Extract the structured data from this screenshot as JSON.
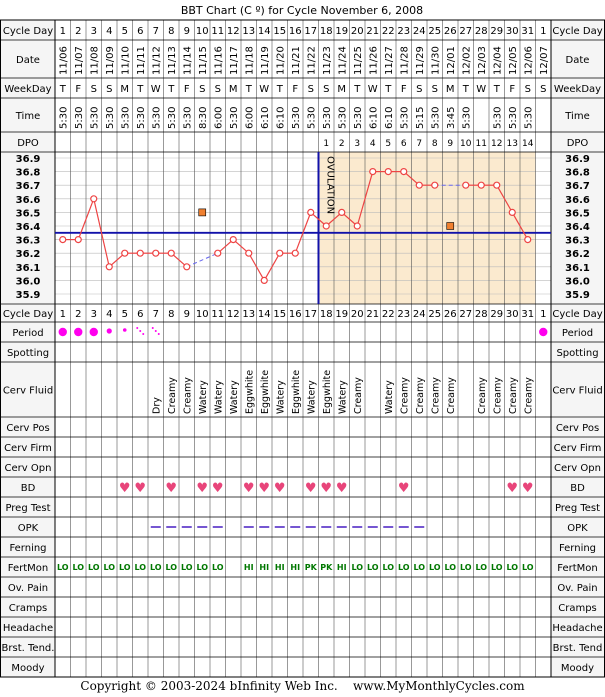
{
  "title": "BBT Chart (C º) for Cycle November 6, 2008",
  "footer": {
    "copyright": "Copyright © 2003-2024 bInfinity Web Inc.",
    "site": "www.MyMonthlyCycles.com"
  },
  "row_labels": {
    "cycle_day": "Cycle Day",
    "date": "Date",
    "weekday": "WeekDay",
    "time": "Time",
    "dpo": "DPO",
    "period": "Period",
    "spotting": "Spotting",
    "cerv_fluid": "Cerv Fluid",
    "cerv_pos": "Cerv Pos",
    "cerv_firm": "Cerv Firm",
    "cerv_opn": "Cerv Opn",
    "bd": "BD",
    "preg_test": "Preg Test",
    "opk": "OPK",
    "ferning": "Ferning",
    "fertmon": "FertMon",
    "ov_pain": "Ov. Pain",
    "cramps": "Cramps",
    "headache": "Headache",
    "brst_tend_left": "Brst. Tend.",
    "brst_tend_right": "Brst. Tend",
    "moody": "Moody"
  },
  "ovulation_label": "OVULATION",
  "cycle_days": [
    "1",
    "2",
    "3",
    "4",
    "5",
    "6",
    "7",
    "8",
    "9",
    "10",
    "11",
    "12",
    "13",
    "14",
    "15",
    "16",
    "17",
    "18",
    "19",
    "20",
    "21",
    "22",
    "23",
    "24",
    "25",
    "26",
    "27",
    "28",
    "29",
    "30",
    "31",
    "1"
  ],
  "dates": [
    "11/06",
    "11/07",
    "11/08",
    "11/09",
    "11/10",
    "11/11",
    "11/12",
    "11/13",
    "11/14",
    "11/15",
    "11/16",
    "11/17",
    "11/18",
    "11/19",
    "11/20",
    "11/21",
    "11/22",
    "11/23",
    "11/24",
    "11/25",
    "11/26",
    "11/27",
    "11/28",
    "11/29",
    "11/30",
    "12/01",
    "12/02",
    "12/03",
    "12/04",
    "12/05",
    "12/06",
    "12/07"
  ],
  "weekdays": [
    "T",
    "F",
    "S",
    "S",
    "M",
    "T",
    "W",
    "T",
    "F",
    "S",
    "S",
    "M",
    "T",
    "W",
    "T",
    "F",
    "S",
    "S",
    "M",
    "T",
    "W",
    "T",
    "F",
    "S",
    "S",
    "M",
    "T",
    "W",
    "T",
    "F",
    "S",
    "S"
  ],
  "times": [
    "5:30",
    "5:30",
    "5:30",
    "5:30",
    "5:30",
    "5:30",
    "5:30",
    "5:30",
    "5:30",
    "8:30",
    "6:00",
    "5:30",
    "6:00",
    "6:10",
    "6:10",
    "5:30",
    "5:30",
    "5:30",
    "5:30",
    "5:30",
    "6:10",
    "6:10",
    "5:30",
    "5:15",
    "5:30",
    "3:45",
    "5:30",
    "",
    "5:30",
    "5:30",
    "5:30",
    ""
  ],
  "dpo": [
    "",
    "",
    "",
    "",
    "",
    "",
    "",
    "",
    "",
    "",
    "",
    "",
    "",
    "",
    "",
    "",
    "",
    "1",
    "2",
    "3",
    "4",
    "5",
    "6",
    "7",
    "8",
    "9",
    "10",
    "11",
    "12",
    "13",
    "14",
    ""
  ],
  "cerv_fluid": [
    "",
    "",
    "",
    "",
    "",
    "",
    "Dry",
    "Creamy",
    "Creamy",
    "Watery",
    "Watery",
    "Watery",
    "Eggwhite",
    "Eggwhite",
    "Watery",
    "Eggwhite",
    "Watery",
    "Eggwhite",
    "Watery",
    "Creamy",
    "",
    "Watery",
    "Creamy",
    "Creamy",
    "Creamy",
    "Creamy",
    "",
    "Creamy",
    "Creamy",
    "Creamy",
    "Creamy",
    ""
  ],
  "bd": [
    false,
    false,
    false,
    false,
    true,
    true,
    false,
    true,
    false,
    true,
    true,
    false,
    true,
    true,
    true,
    false,
    true,
    true,
    true,
    false,
    false,
    false,
    true,
    false,
    false,
    false,
    false,
    false,
    false,
    true,
    true,
    false
  ],
  "opk": [
    false,
    false,
    false,
    false,
    false,
    false,
    true,
    true,
    true,
    true,
    true,
    false,
    true,
    true,
    true,
    true,
    true,
    true,
    true,
    true,
    true,
    true,
    true,
    true,
    false,
    false,
    false,
    false,
    false,
    false,
    false,
    false
  ],
  "fertmon": [
    "LO",
    "LO",
    "LO",
    "LO",
    "LO",
    "LO",
    "LO",
    "LO",
    "LO",
    "LO",
    "LO",
    "",
    "HI",
    "HI",
    "HI",
    "HI",
    "PK",
    "PK",
    "HI",
    "LO",
    "LO",
    "LO",
    "LO",
    "LO",
    "LO",
    "LO",
    "LO",
    "LO",
    "LO",
    "LO",
    "LO",
    ""
  ],
  "period": [
    "heavy",
    "heavy",
    "heavy",
    "medium",
    "light",
    "spotty",
    "spotty",
    "",
    "",
    "",
    "",
    "",
    "",
    "",
    "",
    "",
    "",
    "",
    "",
    "",
    "",
    "",
    "",
    "",
    "",
    "",
    "",
    "",
    "",
    "",
    "",
    "heavy"
  ],
  "temp_axis": [
    "36.9",
    "36.8",
    "36.7",
    "36.6",
    "36.5",
    "36.4",
    "36.3",
    "36.2",
    "36.1",
    "36.0",
    "35.9"
  ],
  "colors": {
    "line": "#ee4444",
    "coverline": "#1111aa",
    "luteal_bg": "#fbeacf",
    "grid_bg": "#ffffff",
    "label_bg": "#f5f5f5",
    "heart": "#e8457a",
    "period": "#ff00ee",
    "fertmon": "#007700",
    "opk": "#6644cc",
    "excluded": "#f08030"
  },
  "chart_data": {
    "type": "line",
    "title": "BBT Chart (C º) for Cycle November 6, 2008",
    "x": [
      1,
      2,
      3,
      4,
      5,
      6,
      7,
      8,
      9,
      10,
      11,
      12,
      13,
      14,
      15,
      16,
      17,
      18,
      19,
      20,
      21,
      22,
      23,
      24,
      25,
      26,
      27,
      28,
      29,
      30,
      31
    ],
    "ylim": [
      35.9,
      36.9
    ],
    "ylabel": "",
    "series": [
      {
        "values": [
          36.3,
          36.3,
          36.6,
          36.1,
          36.2,
          36.2,
          36.2,
          36.2,
          36.1,
          null,
          36.2,
          36.3,
          36.2,
          36.0,
          36.2,
          36.2,
          36.5,
          36.4,
          36.5,
          36.4,
          36.8,
          36.8,
          36.8,
          36.7,
          36.7,
          null,
          36.7,
          36.7,
          36.7,
          36.5,
          36.3
        ]
      }
    ],
    "excluded_points": [
      {
        "day": 10,
        "value": 36.5
      },
      {
        "day": 26,
        "value": 36.4
      }
    ],
    "coverline": 36.35,
    "ovulation_day": 17
  }
}
